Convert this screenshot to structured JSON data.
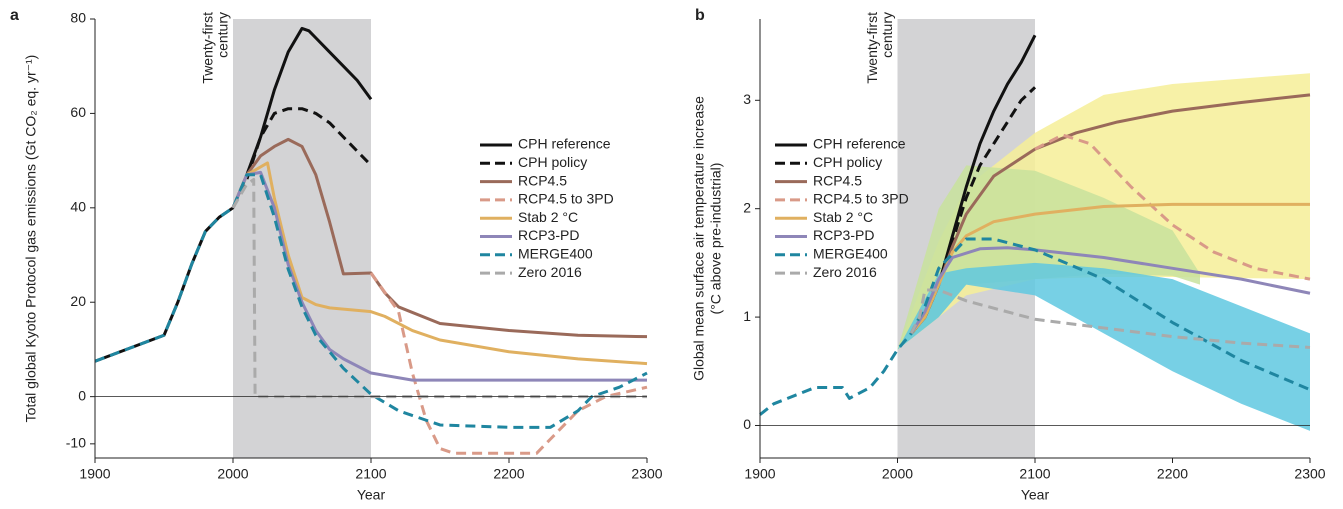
{
  "chart_data": [
    {
      "type": "line",
      "panel": "a",
      "ylabel": "Total global Kyoto Protocol gas emissions (Gt CO₂ eq. yr⁻¹)",
      "xlabel": "Year",
      "annotation": [
        "Twenty-first",
        "century"
      ],
      "shade": [
        2000,
        2100
      ],
      "hline": 0,
      "xlim": [
        1900,
        2300
      ],
      "ylim": [
        -13,
        80
      ],
      "xticks": [
        1900,
        2000,
        2100,
        2200,
        2300
      ],
      "yticks": [
        -10,
        0,
        20,
        40,
        60,
        80
      ],
      "legend": "right",
      "series": [
        {
          "name": "CPH reference",
          "color": "#111111",
          "dash": false,
          "x": [
            1900,
            1950,
            1960,
            1970,
            1980,
            1990,
            2000,
            2010,
            2020,
            2030,
            2040,
            2050,
            2055,
            2060,
            2070,
            2080,
            2090,
            2100
          ],
          "values": [
            7.5,
            13,
            20,
            28,
            35,
            38,
            40,
            47,
            55,
            65,
            73,
            78,
            77.5,
            76,
            73,
            70,
            67,
            63
          ]
        },
        {
          "name": "CPH policy",
          "color": "#111111",
          "dash": true,
          "x": [
            2000,
            2010,
            2020,
            2030,
            2040,
            2050,
            2060,
            2070,
            2080,
            2090,
            2100
          ],
          "values": [
            40,
            46,
            55,
            60,
            61,
            61,
            60,
            58,
            55,
            52,
            49
          ]
        },
        {
          "name": "RCP4.5",
          "color": "#9a6a5a",
          "dash": false,
          "x": [
            2000,
            2010,
            2020,
            2030,
            2040,
            2050,
            2060,
            2070,
            2080,
            2100,
            2110,
            2120,
            2150,
            2200,
            2250,
            2300
          ],
          "values": [
            40,
            47,
            51,
            53,
            54.5,
            53,
            47,
            37,
            26,
            26.2,
            22,
            19,
            15.5,
            14,
            13,
            12.7
          ]
        },
        {
          "name": "RCP4.5 to 3PD",
          "color": "#d99a88",
          "dash": true,
          "x": [
            2100,
            2120,
            2130,
            2140,
            2150,
            2160,
            2220,
            2230,
            2250,
            2270,
            2300
          ],
          "values": [
            26.2,
            18,
            5,
            -5,
            -11,
            -12,
            -12,
            -9,
            -3,
            0,
            2
          ]
        },
        {
          "name": "Stab 2 °C",
          "color": "#e0b060",
          "dash": false,
          "x": [
            2000,
            2010,
            2025,
            2030,
            2040,
            2050,
            2060,
            2070,
            2100,
            2110,
            2130,
            2150,
            2200,
            2250,
            2300
          ],
          "values": [
            40,
            47,
            49.5,
            42,
            30,
            21,
            19.5,
            18.8,
            18,
            17,
            14,
            12,
            9.5,
            8,
            7
          ]
        },
        {
          "name": "RCP3-PD",
          "color": "#8e86b8",
          "dash": false,
          "x": [
            2000,
            2010,
            2020,
            2030,
            2040,
            2050,
            2060,
            2070,
            2080,
            2100,
            2130,
            2300
          ],
          "values": [
            40,
            47,
            47.5,
            40,
            28,
            20,
            14,
            10,
            8,
            5,
            3.5,
            3.5
          ]
        },
        {
          "name": "MERGE400",
          "color": "#1f86a0",
          "dash": true,
          "x": [
            1900,
            1950,
            1960,
            1970,
            1980,
            1990,
            2000,
            2010,
            2020,
            2030,
            2040,
            2050,
            2060,
            2080,
            2100,
            2120,
            2150,
            2200,
            2230,
            2250,
            2260,
            2280,
            2300
          ],
          "values": [
            7.5,
            13,
            20,
            28,
            35,
            38,
            40,
            47,
            47,
            38,
            27,
            19,
            13,
            6,
            0.5,
            -3,
            -6,
            -6.5,
            -6.5,
            -3,
            0,
            2,
            5
          ]
        },
        {
          "name": "Zero 2016",
          "color": "#aaaaaa",
          "dash": true,
          "x": [
            2000,
            2010,
            2015,
            2016,
            2300
          ],
          "values": [
            40,
            45,
            46,
            0,
            0
          ]
        }
      ]
    },
    {
      "type": "line",
      "panel": "b",
      "ylabel": [
        "Global mean surface air temperature increase",
        "(°C above pre-industrial)"
      ],
      "xlabel": "Year",
      "annotation": [
        "Twenty-first",
        "century"
      ],
      "shade": [
        2000,
        2100
      ],
      "hline": 0,
      "xlim": [
        1900,
        2300
      ],
      "ylim": [
        -0.3,
        3.75
      ],
      "xticks": [
        1900,
        2000,
        2100,
        2200,
        2300
      ],
      "yticks": [
        0,
        1,
        2,
        3
      ],
      "legend": "left",
      "bands": [
        {
          "color": "#f6ee98",
          "x": [
            2000,
            2030,
            2050,
            2100,
            2150,
            2200,
            2250,
            2300
          ],
          "lower": [
            0.7,
            1.0,
            1.2,
            1.35,
            1.37,
            1.37,
            1.36,
            1.35
          ],
          "upper": [
            0.7,
            1.7,
            2.2,
            2.7,
            3.05,
            3.15,
            3.2,
            3.25
          ]
        },
        {
          "color": "#c8e29c",
          "x": [
            2000,
            2030,
            2050,
            2100,
            2150,
            2200,
            2220
          ],
          "lower": [
            0.7,
            1.0,
            1.3,
            1.35,
            1.4,
            1.38,
            1.3
          ],
          "upper": [
            0.7,
            2.0,
            2.4,
            2.35,
            2.1,
            1.8,
            1.4
          ]
        },
        {
          "color": "#5fc8e0",
          "x": [
            2000,
            2030,
            2050,
            2100,
            2150,
            2200,
            2250,
            2300
          ],
          "lower": [
            0.7,
            1.0,
            1.3,
            1.2,
            0.85,
            0.5,
            0.2,
            -0.05
          ],
          "upper": [
            0.7,
            1.4,
            1.45,
            1.5,
            1.45,
            1.35,
            1.1,
            0.85
          ]
        }
      ],
      "series": [
        {
          "name": "CPH reference",
          "color": "#111111",
          "dash": false,
          "x": [
            2010,
            2020,
            2030,
            2040,
            2050,
            2060,
            2070,
            2080,
            2090,
            2100
          ],
          "values": [
            0.85,
            1.0,
            1.3,
            1.75,
            2.2,
            2.6,
            2.9,
            3.15,
            3.35,
            3.6
          ]
        },
        {
          "name": "CPH policy",
          "color": "#111111",
          "dash": true,
          "x": [
            2010,
            2020,
            2030,
            2040,
            2050,
            2060,
            2070,
            2080,
            2090,
            2100
          ],
          "values": [
            0.85,
            1.0,
            1.3,
            1.7,
            2.1,
            2.4,
            2.6,
            2.8,
            3.0,
            3.12
          ]
        },
        {
          "name": "RCP4.5",
          "color": "#9a6a5a",
          "dash": false,
          "x": [
            2010,
            2020,
            2030,
            2040,
            2050,
            2070,
            2100,
            2130,
            2160,
            2200,
            2250,
            2300
          ],
          "values": [
            0.85,
            1.0,
            1.3,
            1.65,
            1.95,
            2.3,
            2.55,
            2.7,
            2.8,
            2.9,
            2.98,
            3.05
          ]
        },
        {
          "name": "RCP4.5 to 3PD",
          "color": "#d99a88",
          "dash": true,
          "x": [
            2100,
            2120,
            2140,
            2170,
            2200,
            2230,
            2260,
            2300
          ],
          "values": [
            2.55,
            2.68,
            2.6,
            2.2,
            1.85,
            1.6,
            1.45,
            1.35
          ]
        },
        {
          "name": "Stab 2 °C",
          "color": "#e0b060",
          "dash": false,
          "x": [
            2010,
            2020,
            2030,
            2040,
            2050,
            2070,
            2100,
            2150,
            2200,
            2300
          ],
          "values": [
            0.85,
            1.0,
            1.3,
            1.6,
            1.75,
            1.88,
            1.95,
            2.02,
            2.04,
            2.04
          ]
        },
        {
          "name": "RCP3-PD",
          "color": "#8e86b8",
          "dash": false,
          "x": [
            2010,
            2020,
            2030,
            2040,
            2060,
            2080,
            2100,
            2150,
            2200,
            2250,
            2300
          ],
          "values": [
            0.85,
            1.05,
            1.35,
            1.55,
            1.63,
            1.64,
            1.62,
            1.55,
            1.45,
            1.35,
            1.22
          ]
        },
        {
          "name": "MERGE400",
          "color": "#1f86a0",
          "dash": true,
          "x": [
            1900,
            1910,
            1930,
            1940,
            1960,
            1965,
            1980,
            1990,
            2000,
            2010,
            2020,
            2030,
            2050,
            2070,
            2100,
            2150,
            2200,
            2250,
            2300
          ],
          "values": [
            0.1,
            0.2,
            0.3,
            0.35,
            0.35,
            0.25,
            0.35,
            0.5,
            0.7,
            0.85,
            1.1,
            1.45,
            1.72,
            1.72,
            1.62,
            1.35,
            0.95,
            0.6,
            0.33
          ]
        },
        {
          "name": "Zero 2016",
          "color": "#aaaaaa",
          "dash": true,
          "x": [
            2010,
            2016,
            2020,
            2030,
            2050,
            2100,
            2150,
            2200,
            2250,
            2300
          ],
          "values": [
            0.85,
            1.0,
            1.25,
            1.25,
            1.15,
            0.98,
            0.9,
            0.82,
            0.76,
            0.72
          ]
        }
      ]
    }
  ]
}
